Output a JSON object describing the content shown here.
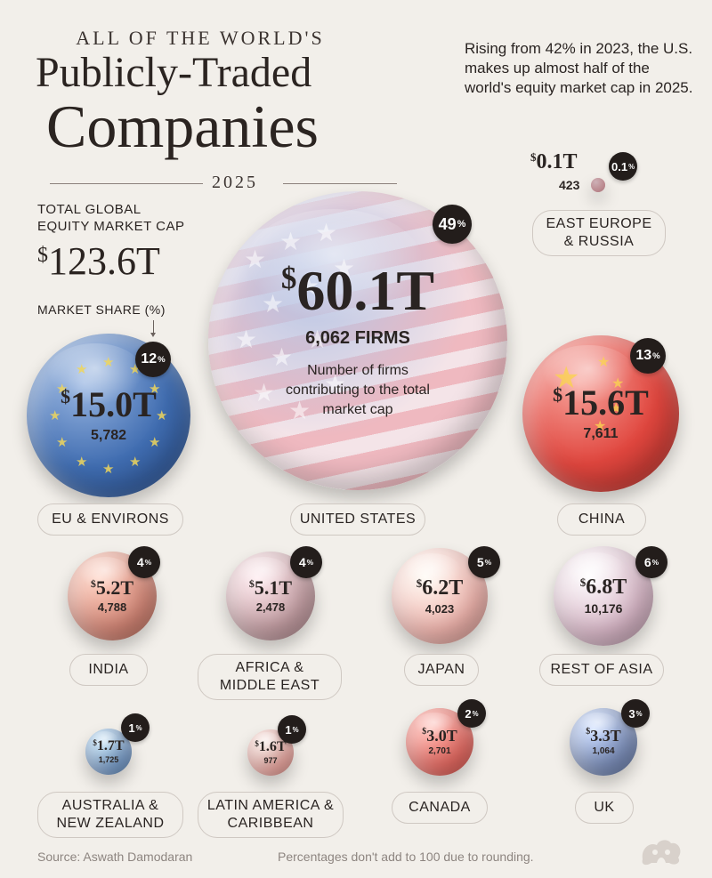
{
  "header": {
    "kicker": "ALL OF THE WORLD'S",
    "title_line1": "Publicly-Traded",
    "title_line2": "Companies",
    "year": "2025"
  },
  "note": "Rising from 42% in 2023, the U.S. makes up almost half of the world's equity market cap in 2025.",
  "total": {
    "label_line1": "TOTAL GLOBAL",
    "label_line2": "EQUITY MARKET CAP",
    "currency": "$",
    "value": "123.6T"
  },
  "share_label": "MARKET SHARE (%)",
  "us_caption": "Number of firms contributing to the total market cap",
  "footer": {
    "source": "Source: Aswath Damodaran",
    "disclaimer": "Percentages don't add to 100 due to rounding."
  },
  "colors": {
    "usa": "#c97f8c",
    "eu": "#3f6cb0",
    "china": "#e0463e",
    "india": "#d78a7a",
    "africa_me": "#c9a3a8",
    "japan": "#f0b5ae",
    "rest_asia": "#d9b8c8",
    "aus_nz": "#7aa0cf",
    "latam": "#f1a9a2",
    "canada": "#eb6e66",
    "uk": "#7f92be",
    "east_europe": "#e07a86"
  },
  "chart_data": {
    "type": "bubble",
    "title": "All of the World's Publicly-Traded Companies 2025",
    "value_unit": "trillion USD",
    "regions": [
      {
        "name": "UNITED STATES",
        "value": "60.1T",
        "market_cap_t": 60.1,
        "firms": "6,062 FIRMS",
        "firm_count": 6062,
        "share": 49
      },
      {
        "name": "EU & ENVIRONS",
        "value": "15.0T",
        "market_cap_t": 15.0,
        "firms": "5,782",
        "firm_count": 5782,
        "share": 12
      },
      {
        "name": "CHINA",
        "value": "15.6T",
        "market_cap_t": 15.6,
        "firms": "7,611",
        "firm_count": 7611,
        "share": 13
      },
      {
        "name": "EAST EUROPE & RUSSIA",
        "value": "0.1T",
        "market_cap_t": 0.1,
        "firms": "423",
        "firm_count": 423,
        "share": 0.1,
        "share_label": "0.1"
      },
      {
        "name": "INDIA",
        "value": "5.2T",
        "market_cap_t": 5.2,
        "firms": "4,788",
        "firm_count": 4788,
        "share": 4
      },
      {
        "name": "AFRICA & MIDDLE EAST",
        "value": "5.1T",
        "market_cap_t": 5.1,
        "firms": "2,478",
        "firm_count": 2478,
        "share": 4
      },
      {
        "name": "JAPAN",
        "value": "6.2T",
        "market_cap_t": 6.2,
        "firms": "4,023",
        "firm_count": 4023,
        "share": 5
      },
      {
        "name": "REST OF ASIA",
        "value": "6.8T",
        "market_cap_t": 6.8,
        "firms": "10,176",
        "firm_count": 10176,
        "share": 6
      },
      {
        "name": "AUSTRALIA & NEW ZEALAND",
        "value": "1.7T",
        "market_cap_t": 1.7,
        "firms": "1,725",
        "firm_count": 1725,
        "share": 1
      },
      {
        "name": "LATIN AMERICA & CARIBBEAN",
        "value": "1.6T",
        "market_cap_t": 1.6,
        "firms": "977",
        "firm_count": 977,
        "share": 1
      },
      {
        "name": "CANADA",
        "value": "3.0T",
        "market_cap_t": 3.0,
        "firms": "2,701",
        "firm_count": 2701,
        "share": 2
      },
      {
        "name": "UK",
        "value": "3.3T",
        "market_cap_t": 3.3,
        "firms": "1,064",
        "firm_count": 1064,
        "share": 3
      }
    ]
  }
}
